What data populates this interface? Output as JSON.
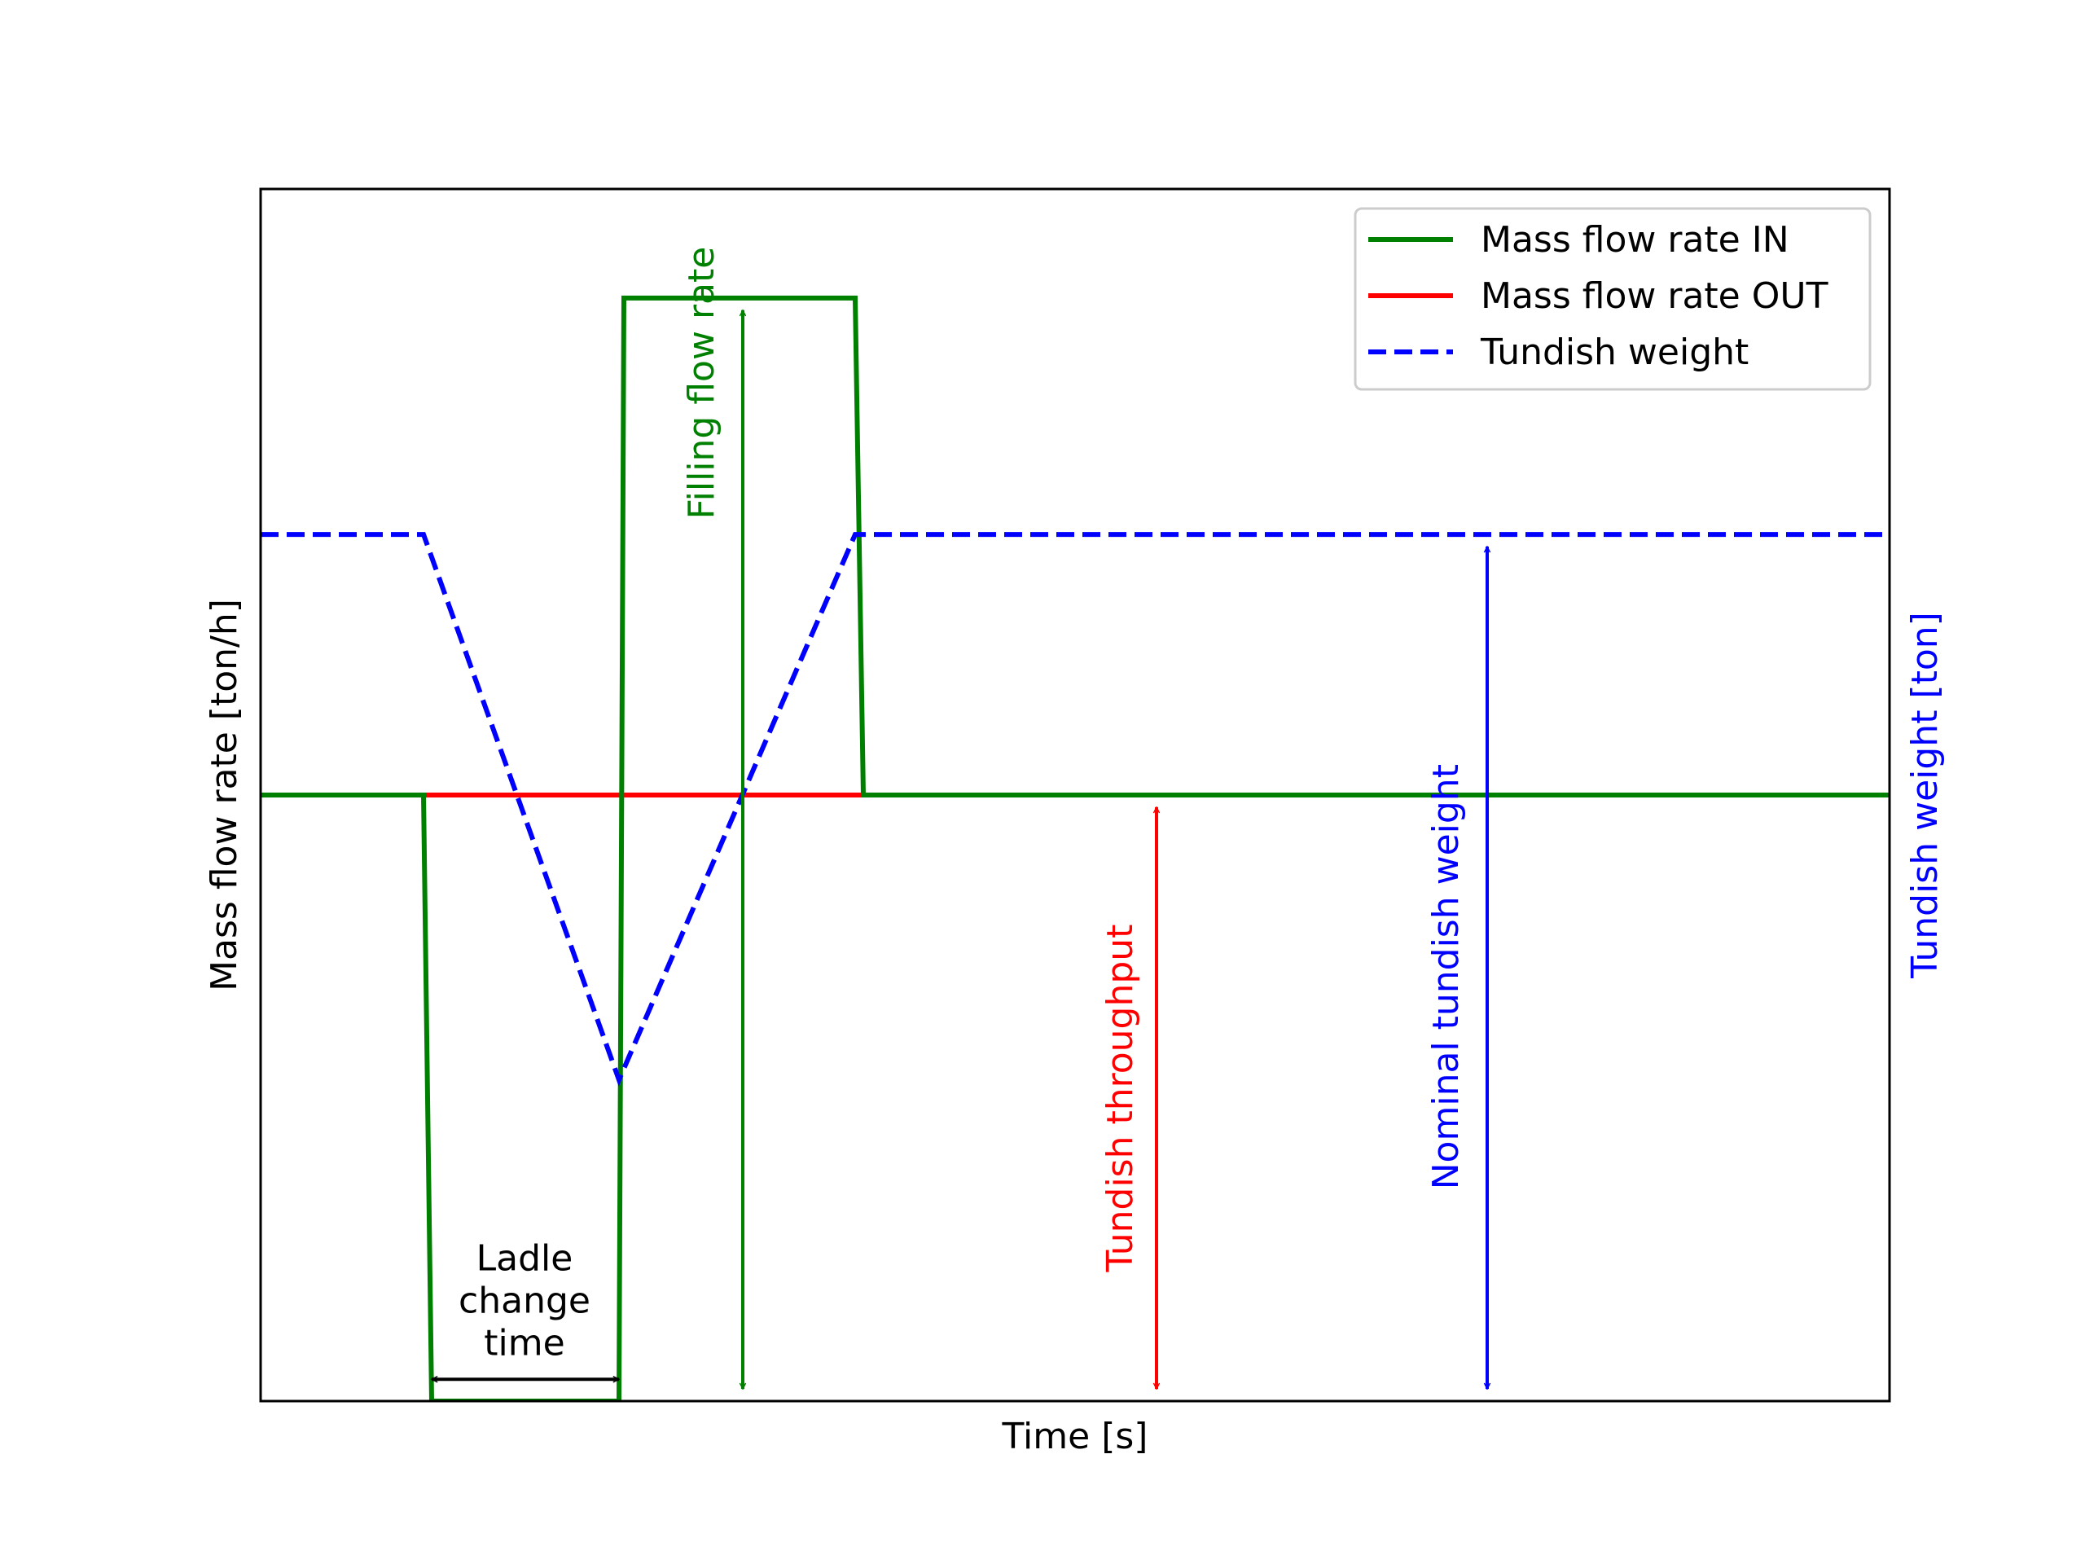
{
  "chart_data": {
    "type": "line",
    "xlabel": "Time [s]",
    "ylabel": "Mass flow rate [ton/h]",
    "ylabel_right": "Tundish weight [ton]",
    "xlim": [
      0,
      100
    ],
    "ylim": [
      0,
      100
    ],
    "grid": false,
    "ticks_shown": false,
    "legend_position": "top-right",
    "series": [
      {
        "name": "Mass flow rate IN",
        "color": "#008000",
        "style": "solid",
        "x": [
          0,
          10,
          10.5,
          22,
          22.3,
          36.5,
          37,
          100
        ],
        "y": [
          50,
          50,
          0,
          0,
          91,
          91,
          50,
          50
        ]
      },
      {
        "name": "Mass flow rate OUT",
        "color": "#ff0000",
        "style": "solid",
        "x": [
          0,
          100
        ],
        "y": [
          50,
          50
        ]
      },
      {
        "name": "Tundish weight",
        "color": "#0000ff",
        "style": "dashed",
        "x": [
          0,
          10,
          22,
          36.5,
          100
        ],
        "y": [
          71.5,
          71.5,
          26.5,
          71.5,
          71.5
        ]
      }
    ],
    "annotations": [
      {
        "label": "Filling flow rate",
        "color": "#008000",
        "x": 29.6,
        "y_from": 1,
        "y_to": 90,
        "text_x": 27.8,
        "text_y": 84,
        "orientation": "vertical"
      },
      {
        "label": "Tundish throughput",
        "color": "#ff0000",
        "x": 55,
        "y_from": 1,
        "y_to": 49,
        "text_x": 53.5,
        "text_y": 25,
        "orientation": "vertical"
      },
      {
        "label": "Nominal tundish weight",
        "color": "#0000ff",
        "x": 75.3,
        "y_from": 1,
        "y_to": 70.5,
        "text_x": 73.5,
        "text_y": 35,
        "orientation": "vertical"
      },
      {
        "label_lines": [
          "Ladle",
          "change",
          "time"
        ],
        "color": "#000000",
        "x_from": 10.5,
        "x_to": 22,
        "y": 1.8,
        "text_x": 16.2,
        "text_y": 10.8
      }
    ]
  }
}
